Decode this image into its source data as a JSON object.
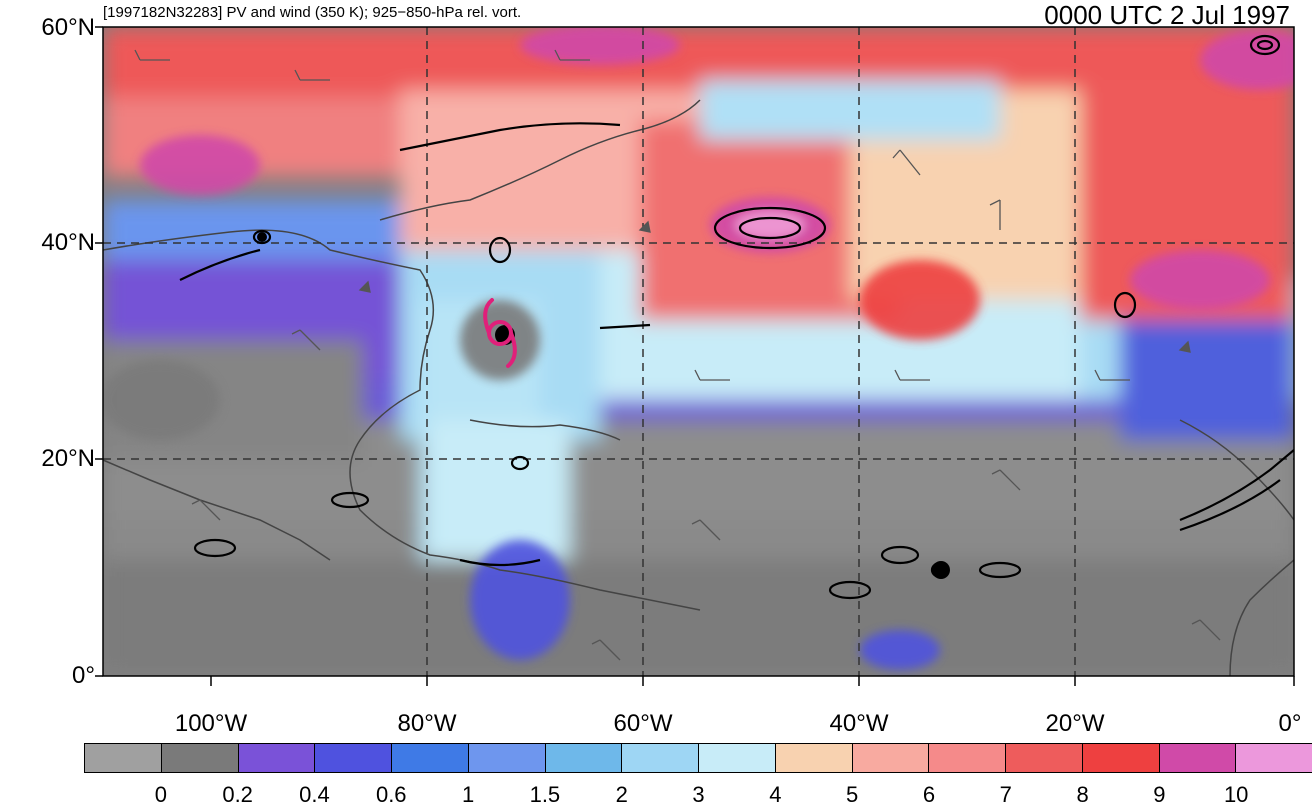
{
  "header": {
    "left_title": "[1997182N32283] PV and wind (350 K); 925−850-hPa rel. vort.",
    "right_title": "0000 UTC 2 Jul 1997"
  },
  "axes": {
    "lat_labels": [
      "60°N",
      "40°N",
      "20°N",
      "0°"
    ],
    "lon_labels": [
      "100°W",
      "80°W",
      "60°W",
      "40°W",
      "20°W",
      "0°"
    ]
  },
  "colorbar": {
    "colors": [
      "#a0a0a0",
      "#7a7a7a",
      "#7a52d8",
      "#4f52df",
      "#3f7ae6",
      "#6e96ee",
      "#6eb8ea",
      "#9ed6f4",
      "#c8ecf8",
      "#f8d2b0",
      "#f8aaa0",
      "#f58a8a",
      "#ee5c5c",
      "#ee4040",
      "#d04aa8",
      "#ec98dc"
    ],
    "tick_labels": [
      "0",
      "0.2",
      "0.4",
      "0.6",
      "1",
      "1.5",
      "2",
      "3",
      "4",
      "5",
      "6",
      "7",
      "8",
      "9",
      "10"
    ]
  },
  "map": {
    "storm_symbol": "tropical-cyclone-icon",
    "storm_color": "#e0207a",
    "grid_style": "dashed",
    "lat_range": [
      0,
      60
    ],
    "lon_range": [
      -110,
      0
    ]
  }
}
